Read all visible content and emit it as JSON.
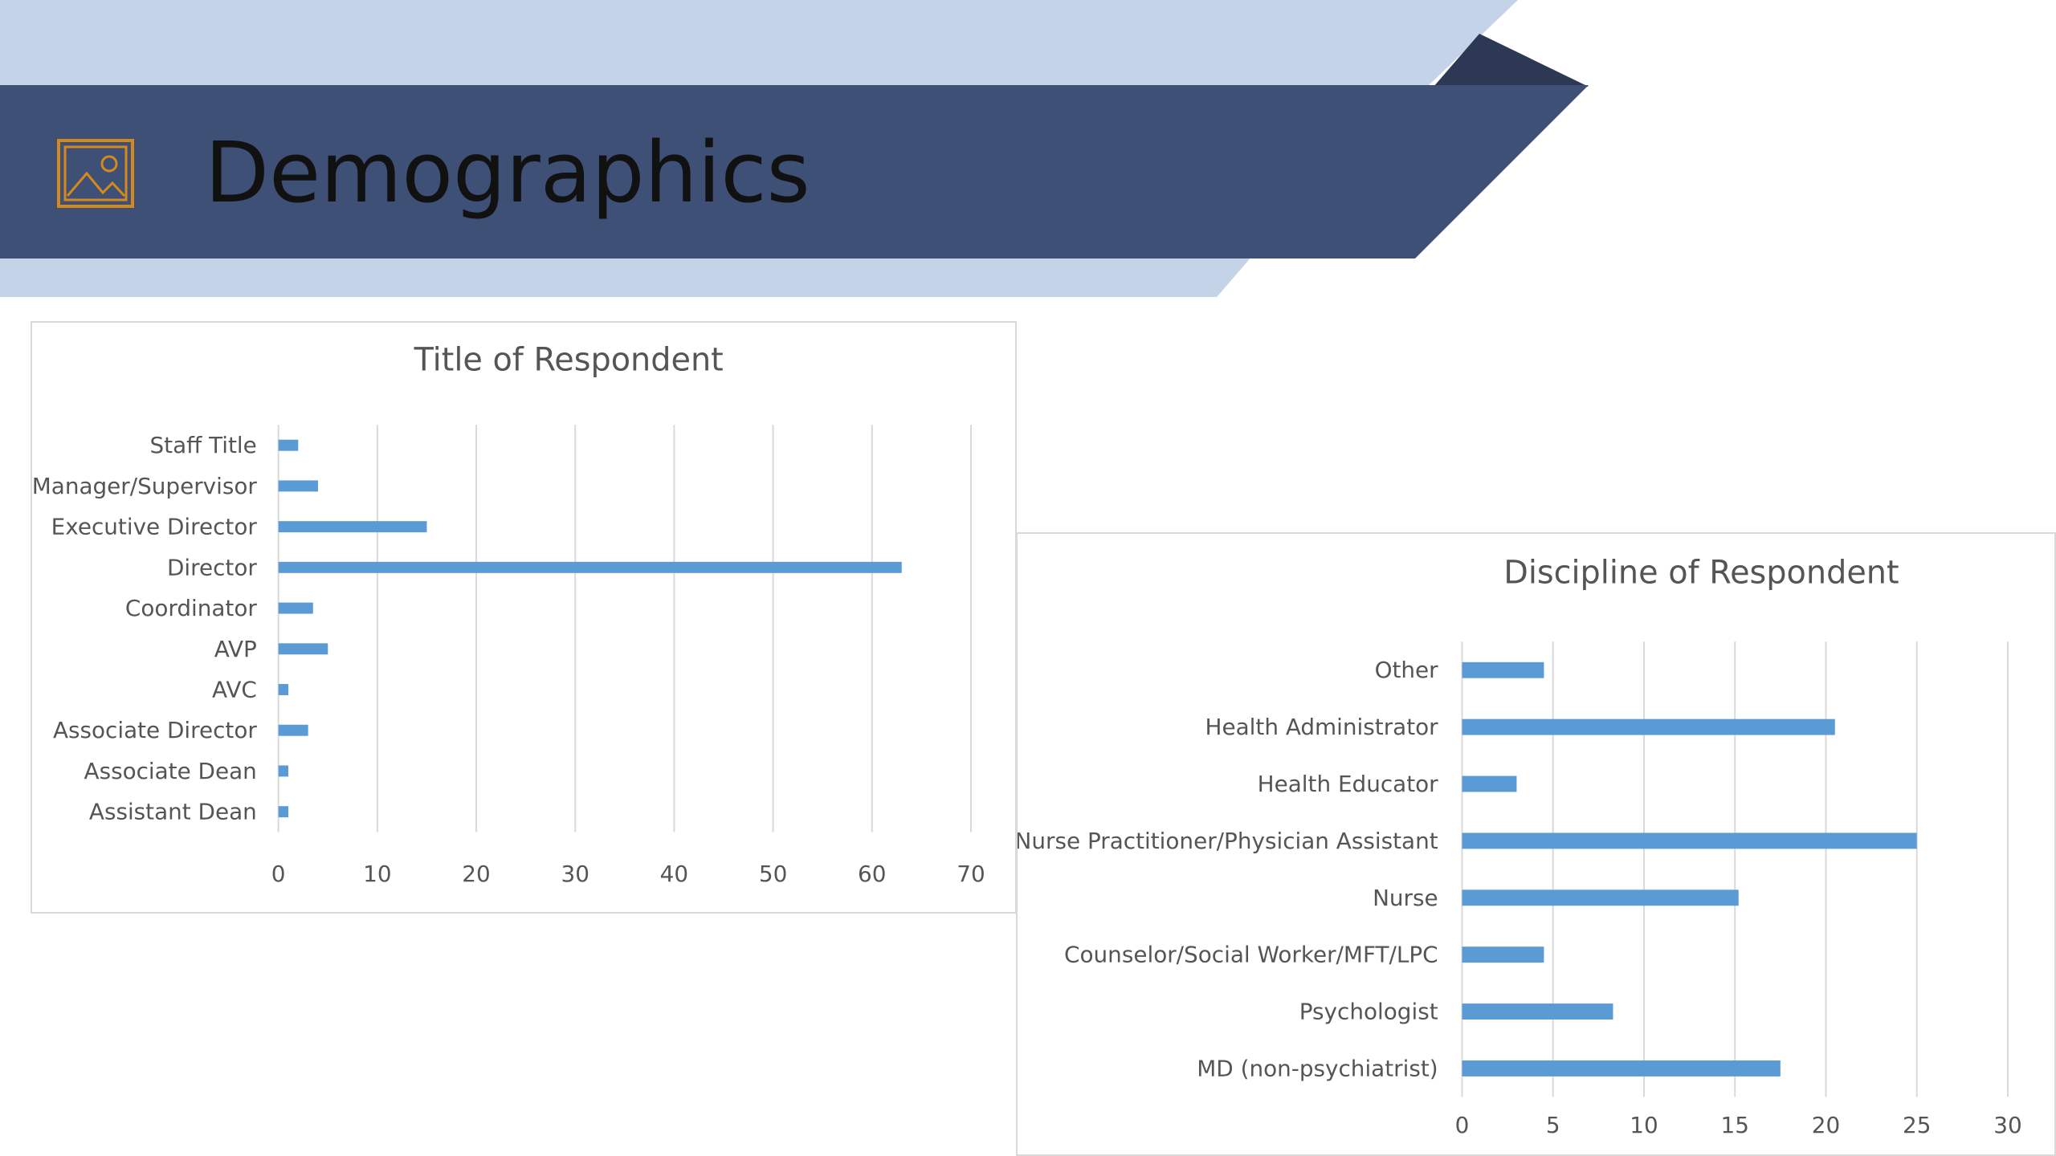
{
  "page": {
    "title": "Demographics",
    "icon": "picture-placeholder-icon",
    "colors": {
      "banner_dark": "#3f5077",
      "banner_light": "#c5d3e9",
      "banner_shadow": "#2d3954",
      "icon_accent": "#d4891c",
      "bar": "#5b9bd5"
    }
  },
  "chart_data": [
    {
      "type": "bar",
      "orientation": "horizontal",
      "title": "Title of Respondent",
      "categories": [
        "Staff Title",
        "Manager/Supervisor",
        "Executive Director",
        "Director",
        "Coordinator",
        "AVP",
        "AVC",
        "Associate Director",
        "Associate Dean",
        "Assistant Dean"
      ],
      "values": [
        2,
        4,
        15,
        63,
        3.5,
        5,
        1,
        3,
        1,
        1
      ],
      "xlim": [
        0,
        70
      ],
      "xticks": [
        0,
        10,
        20,
        30,
        40,
        50,
        60,
        70
      ],
      "grid": true,
      "legend": "none"
    },
    {
      "type": "bar",
      "orientation": "horizontal",
      "title": "Discipline of Respondent",
      "categories": [
        "Other",
        "Health Administrator",
        "Health Educator",
        "Nurse Practitioner/Physician Assistant",
        "Nurse",
        "Counselor/Social Worker/MFT/LPC",
        "Psychologist",
        "MD (non-psychiatrist)"
      ],
      "values": [
        4.5,
        20.5,
        3,
        25,
        15.2,
        4.5,
        8.3,
        17.5
      ],
      "xlim": [
        0,
        30
      ],
      "xticks": [
        0,
        5,
        10,
        15,
        20,
        25,
        30
      ],
      "grid": true,
      "legend": "none"
    }
  ]
}
